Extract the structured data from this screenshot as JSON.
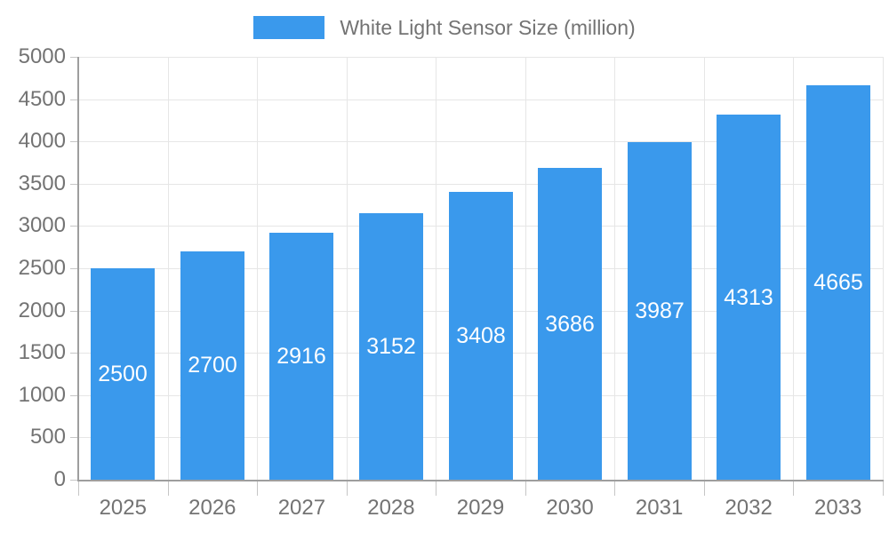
{
  "legend": {
    "label": "White Light Sensor Size (million)"
  },
  "chart_data": {
    "type": "bar",
    "title": "White Light Sensor Size (million)",
    "categories": [
      "2025",
      "2026",
      "2027",
      "2028",
      "2029",
      "2030",
      "2031",
      "2032",
      "2033"
    ],
    "series": [
      {
        "name": "White Light Sensor Size (million)",
        "values": [
          2500,
          2700,
          2916,
          3152,
          3408,
          3686,
          3987,
          4313,
          4665
        ]
      }
    ],
    "xlabel": "",
    "ylabel": "",
    "ylim": [
      0,
      5000
    ],
    "ytick_step": 500,
    "grid": true,
    "legend_position": "top",
    "bar_labels_visible": true
  },
  "colors": {
    "bar": "#3A99EC",
    "bar_label": "#ffffff",
    "axis_text": "#737373",
    "grid_line": "#e6e6e6",
    "axis_line": "#9e9e9e",
    "tick": "#c6c6c6",
    "background": "#ffffff"
  }
}
